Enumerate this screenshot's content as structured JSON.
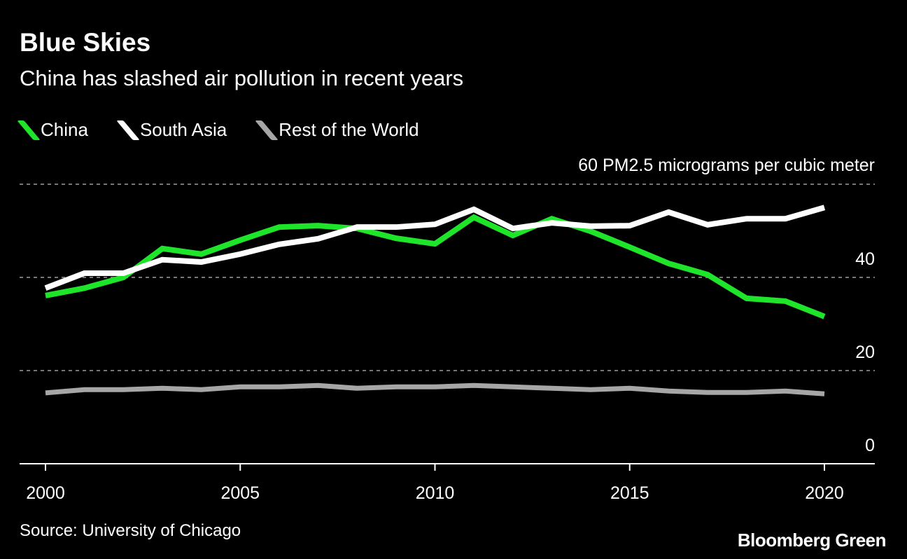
{
  "chart_data": {
    "type": "line",
    "title": "Blue Skies",
    "subtitle": "China has slashed air pollution in recent years",
    "ylabel": "60 PM2.5 micrograms per cubic meter",
    "ylim": [
      0,
      60
    ],
    "yticks": [
      "0",
      "20",
      "40"
    ],
    "xticks": [
      "2000",
      "2005",
      "2010",
      "2015",
      "2020"
    ],
    "x": [
      2000,
      2001,
      2002,
      2003,
      2004,
      2005,
      2006,
      2007,
      2008,
      2009,
      2010,
      2011,
      2012,
      2013,
      2014,
      2015,
      2016,
      2017,
      2018,
      2019,
      2020
    ],
    "grid": true,
    "legend_position": "top-left",
    "series": [
      {
        "name": "China",
        "color": "#1fe52a",
        "values": [
          36.1,
          37.7,
          40.0,
          46.2,
          45.0,
          48.0,
          50.8,
          51.1,
          50.5,
          48.4,
          47.2,
          52.9,
          49.0,
          52.6,
          49.9,
          46.5,
          43.0,
          40.6,
          35.5,
          34.9,
          31.6
        ]
      },
      {
        "name": "South Asia",
        "color": "#ffffff",
        "values": [
          37.7,
          40.9,
          40.9,
          43.8,
          43.3,
          45.0,
          47.1,
          48.3,
          50.8,
          50.8,
          51.4,
          54.6,
          50.5,
          51.7,
          51.0,
          51.1,
          54.0,
          51.3,
          52.6,
          52.6,
          55.0
        ]
      },
      {
        "name": "Rest of the World",
        "color": "#a6a6a6",
        "values": [
          15.2,
          15.9,
          15.9,
          16.2,
          15.9,
          16.5,
          16.5,
          16.8,
          16.2,
          16.5,
          16.5,
          16.8,
          16.5,
          16.2,
          15.9,
          16.2,
          15.6,
          15.3,
          15.3,
          15.6,
          15.0
        ]
      }
    ]
  },
  "footer": {
    "source": "Source: University of Chicago",
    "logo": "Bloomberg Green"
  }
}
